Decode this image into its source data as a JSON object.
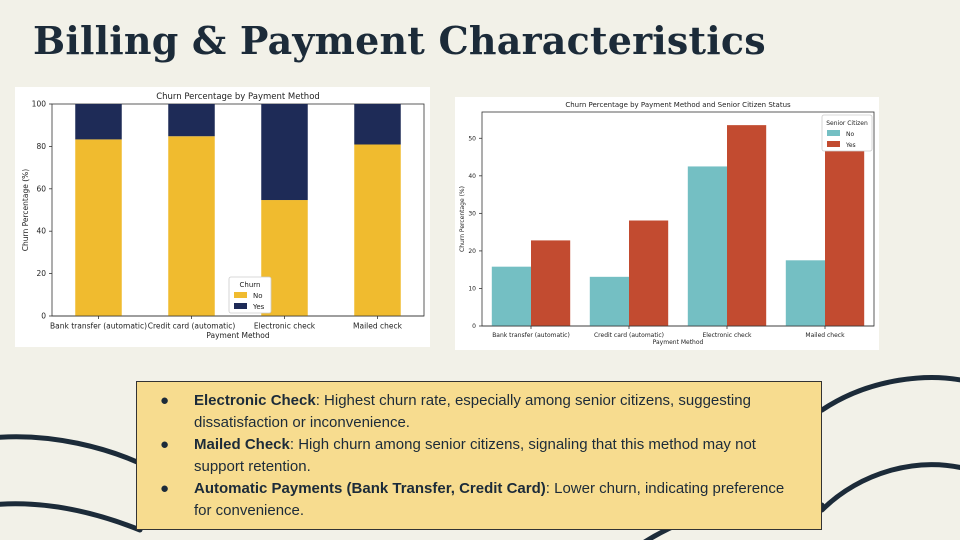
{
  "slide": {
    "title": "Billing & Payment Characteristics"
  },
  "chart_data": [
    {
      "type": "bar",
      "stacked": true,
      "title": "Churn Percentage by Payment Method",
      "xlabel": "Payment Method",
      "ylabel": "Churn Percentage (%)",
      "ylim": [
        0,
        100
      ],
      "yticks": [
        0,
        20,
        40,
        60,
        80,
        100
      ],
      "categories": [
        "Bank transfer (automatic)",
        "Credit card (automatic)",
        "Electronic check",
        "Mailed check"
      ],
      "legend": {
        "title": "Churn",
        "placement": "lower center"
      },
      "series": [
        {
          "name": "No",
          "color": "#f0bb2f",
          "values": [
            83.3,
            84.8,
            54.7,
            80.9
          ]
        },
        {
          "name": "Yes",
          "color": "#1e2b57",
          "values": [
            16.7,
            15.2,
            45.3,
            19.1
          ]
        }
      ]
    },
    {
      "type": "bar",
      "stacked": false,
      "title": "Churn Percentage by Payment Method and Senior Citizen Status",
      "xlabel": "Payment Method",
      "ylabel": "Churn Percentage (%)",
      "ylim": [
        0,
        57
      ],
      "yticks": [
        0,
        10,
        20,
        30,
        40,
        50
      ],
      "categories": [
        "Bank transfer (automatic)",
        "Credit card (automatic)",
        "Electronic check",
        "Mailed check"
      ],
      "legend": {
        "title": "Senior Citizen",
        "placement": "upper right"
      },
      "series": [
        {
          "name": "No",
          "color": "#74bfc3",
          "values": [
            15.8,
            13.1,
            42.5,
            17.5
          ]
        },
        {
          "name": "Yes",
          "color": "#c24b30",
          "values": [
            22.8,
            28.1,
            53.5,
            46.8
          ]
        }
      ]
    }
  ],
  "notes": [
    {
      "bullet": "●",
      "head": "Electronic Check",
      "body": ": Highest churn rate, especially among senior citizens, suggesting dissatisfaction or inconvenience."
    },
    {
      "bullet": "●",
      "head": "Mailed Check",
      "body": ": High churn among senior citizens, signaling that this method may not support retention."
    },
    {
      "bullet": "●",
      "head": "Automatic Payments (Bank Transfer, Credit Card)",
      "body": ": Lower churn, indicating preference for convenience."
    }
  ]
}
